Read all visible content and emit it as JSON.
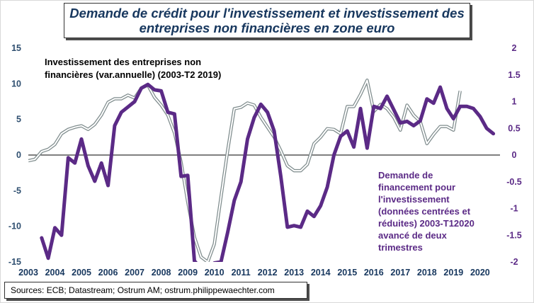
{
  "title": "Demande de crédit pour l'investissement et investissement des entreprises non financières en zone euro",
  "source": "Sources: ECB; Datastream; Ostrum AM; ostrum.philippewaechter.com",
  "colors": {
    "investment": "#7f8c8d",
    "credit": "#5b2a86",
    "left_axis": "#2f4f70",
    "right_axis": "#5b2a86"
  },
  "chart_data": {
    "type": "line",
    "title": "Demande de crédit pour l'investissement et investissement des entreprises non financières en zone euro",
    "x_tick_labels": [
      "2003",
      "2004",
      "2005",
      "2006",
      "2007",
      "2008",
      "2009",
      "2010",
      "2011",
      "2012",
      "2013",
      "2014",
      "2015",
      "2016",
      "2017",
      "2018",
      "2019",
      "2020"
    ],
    "ylim_left": [
      -15,
      15
    ],
    "yticks_left": [
      15,
      10,
      5,
      0,
      -5,
      -10,
      -15
    ],
    "ylim_right": [
      -2,
      2
    ],
    "yticks_right": [
      "2",
      "1.5",
      "1",
      "0.5",
      "0",
      "-0.5",
      "-1",
      "-1.5",
      "-2"
    ],
    "yticks_right_values": [
      2,
      1.5,
      1,
      0.5,
      0,
      -0.5,
      -1,
      -1.5,
      -2
    ],
    "grid": false,
    "zero_line": true,
    "series": [
      {
        "name": "Investissement des entreprises non financières (var.annuelle) (2003-T2 2019)",
        "axis": "left",
        "line_style": "outline",
        "x": [
          2003.0,
          2003.25,
          2003.5,
          2003.75,
          2004.0,
          2004.25,
          2004.5,
          2004.75,
          2005.0,
          2005.25,
          2005.5,
          2005.75,
          2006.0,
          2006.25,
          2006.5,
          2006.75,
          2007.0,
          2007.25,
          2007.5,
          2007.75,
          2008.0,
          2008.25,
          2008.5,
          2008.75,
          2009.0,
          2009.25,
          2009.5,
          2009.75,
          2010.0,
          2010.25,
          2010.5,
          2010.75,
          2011.0,
          2011.25,
          2011.5,
          2011.75,
          2012.0,
          2012.25,
          2012.5,
          2012.75,
          2013.0,
          2013.25,
          2013.5,
          2013.75,
          2014.0,
          2014.25,
          2014.5,
          2014.75,
          2015.0,
          2015.25,
          2015.5,
          2015.75,
          2016.0,
          2016.25,
          2016.5,
          2016.75,
          2017.0,
          2017.25,
          2017.5,
          2017.75,
          2018.0,
          2018.25,
          2018.5,
          2018.75,
          2019.0,
          2019.25
        ],
        "values": [
          -0.8,
          -0.6,
          0.5,
          0.8,
          1.5,
          3.0,
          3.6,
          3.9,
          4.1,
          3.6,
          4.3,
          5.6,
          7.4,
          7.9,
          7.9,
          8.4,
          8.0,
          9.4,
          9.8,
          8.1,
          7.0,
          5.6,
          3.1,
          -1.0,
          -6.6,
          -11.5,
          -14.3,
          -15.0,
          -12.5,
          -5.9,
          0.6,
          6.5,
          6.7,
          7.3,
          7.0,
          5.3,
          3.9,
          2.5,
          0.6,
          -1.5,
          -2.2,
          -2.2,
          -1.3,
          1.6,
          2.5,
          3.7,
          3.6,
          3.0,
          6.8,
          6.8,
          8.5,
          10.5,
          6.1,
          7.1,
          6.5,
          5.3,
          3.5,
          7.0,
          5.6,
          4.7,
          1.6,
          2.9,
          4.0,
          4.0,
          3.5,
          9.0
        ]
      },
      {
        "name": "Demande de financement pour l'investissement (données centrées et réduites) 2003-T12020 avancé de deux trimestres",
        "axis": "right",
        "line_style": "thick",
        "x": [
          2003.5,
          2003.75,
          2004.0,
          2004.25,
          2004.5,
          2004.75,
          2005.0,
          2005.25,
          2005.5,
          2005.75,
          2006.0,
          2006.25,
          2006.5,
          2006.75,
          2007.0,
          2007.25,
          2007.5,
          2007.75,
          2008.0,
          2008.25,
          2008.5,
          2008.75,
          2009.0,
          2009.25,
          2009.5,
          2009.75,
          2010.0,
          2010.25,
          2010.5,
          2010.75,
          2011.0,
          2011.25,
          2011.5,
          2011.75,
          2012.0,
          2012.25,
          2012.5,
          2012.75,
          2013.0,
          2013.25,
          2013.5,
          2013.75,
          2014.0,
          2014.25,
          2014.5,
          2014.75,
          2015.0,
          2015.25,
          2015.5,
          2015.75,
          2016.0,
          2016.25,
          2016.5,
          2016.75,
          2017.0,
          2017.25,
          2017.5,
          2017.75,
          2018.0,
          2018.25,
          2018.5,
          2018.75,
          2019.0,
          2019.25,
          2019.5,
          2019.75,
          2020.0,
          2020.25,
          2020.5
        ],
        "values": [
          -1.55,
          -1.93,
          -1.36,
          -1.5,
          -0.05,
          -0.15,
          0.3,
          -0.2,
          -0.49,
          -0.15,
          -0.57,
          0.55,
          0.8,
          0.9,
          1.0,
          1.25,
          1.32,
          1.22,
          1.2,
          0.8,
          0.77,
          -0.4,
          -0.38,
          -1.98,
          -2.13,
          -2.13,
          -2.02,
          -2.0,
          -1.45,
          -0.85,
          -0.5,
          0.3,
          0.7,
          0.95,
          0.8,
          0.45,
          -0.4,
          -1.35,
          -1.32,
          -1.35,
          -1.05,
          -1.15,
          -0.95,
          -0.6,
          0.0,
          0.35,
          0.45,
          0.15,
          0.87,
          0.13,
          0.91,
          0.87,
          1.1,
          0.85,
          0.6,
          0.63,
          0.55,
          0.64,
          1.05,
          0.97,
          1.27,
          0.87,
          0.68,
          0.91,
          0.91,
          0.87,
          0.72,
          0.5,
          0.4
        ]
      }
    ]
  },
  "annotations": {
    "investment_label_lines": [
      "Investissement des entreprises non",
      "financières (var.annuelle) (2003-T2 2019)"
    ],
    "credit_label_lines": [
      "Demande de",
      "financement pour",
      "l'investissement",
      "(données centrées et",
      "réduites) 2003-T12020",
      "avancé de deux",
      "trimestres"
    ]
  }
}
